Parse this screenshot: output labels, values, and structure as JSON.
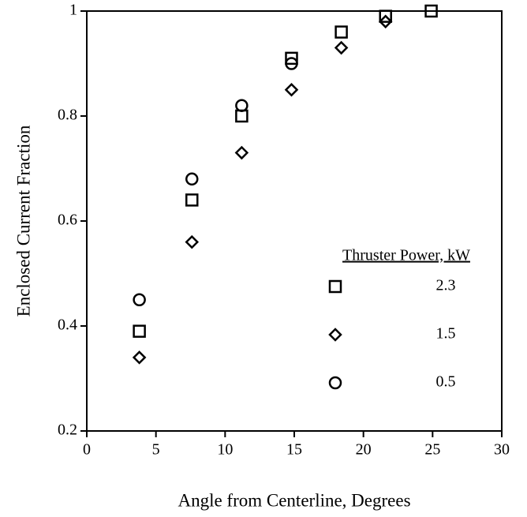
{
  "chart_data": {
    "type": "scatter",
    "xlabel": "Angle from Centerline, Degrees",
    "ylabel": "Enclosed Current Fraction",
    "legend_title": "Thruster Power, kW",
    "legend": "right",
    "xlim": [
      0,
      30
    ],
    "xticks": [
      0,
      5,
      10,
      15,
      20,
      25,
      30
    ],
    "ylim": [
      0.2,
      1
    ],
    "yticks": [
      0.2,
      0.4,
      0.6,
      0.8,
      1
    ],
    "series": [
      {
        "name": "2.3",
        "marker": "square",
        "color": "#000000",
        "x": [
          3.8,
          7.6,
          11.2,
          14.8,
          18.4,
          21.6,
          24.9
        ],
        "values": [
          0.39,
          0.64,
          0.8,
          0.91,
          0.96,
          0.99,
          1.0
        ]
      },
      {
        "name": "1.5",
        "marker": "diamond",
        "color": "#000000",
        "x": [
          3.8,
          7.6,
          11.2,
          14.8,
          18.4,
          21.6
        ],
        "values": [
          0.34,
          0.56,
          0.73,
          0.85,
          0.93,
          0.98
        ]
      },
      {
        "name": "0.5",
        "marker": "circle",
        "color": "#000000",
        "x": [
          3.8,
          7.6,
          11.2,
          14.8
        ],
        "values": [
          0.45,
          0.68,
          0.82,
          0.9
        ]
      }
    ]
  }
}
